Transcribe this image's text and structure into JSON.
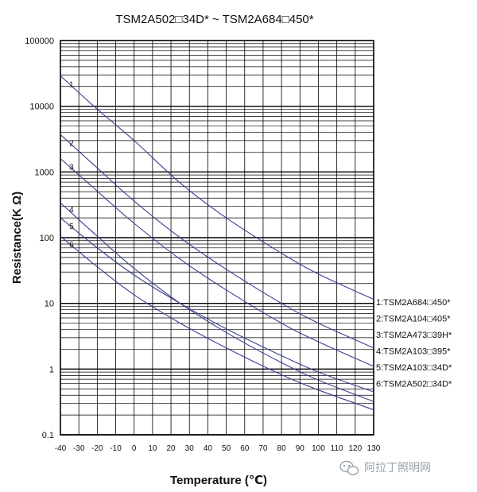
{
  "watermark": {
    "text": "阿拉丁照明网",
    "icon": "wechat-icon"
  },
  "chart_data": {
    "type": "line",
    "title": "TSM2A502□34D* ~ TSM2A684□450*",
    "xlabel": "Temperature (℃)",
    "ylabel": "Resistance(K Ω)",
    "xlim": [
      -40,
      130
    ],
    "ylim": [
      0.1,
      100000
    ],
    "yscale": "log",
    "grid": true,
    "line_color": "#3b3f8f",
    "x_ticks": [
      "-40",
      "-30",
      "-20",
      "-10",
      "0",
      "10",
      "20",
      "30",
      "40",
      "50",
      "60",
      "70",
      "80",
      "90",
      "100",
      "110",
      "120",
      "130"
    ],
    "y_ticks": [
      {
        "value": 0.1,
        "label": "0.1"
      },
      {
        "value": 1,
        "label": "1"
      },
      {
        "value": 10,
        "label": "10"
      },
      {
        "value": 100,
        "label": "100"
      },
      {
        "value": 1000,
        "label": "1000"
      },
      {
        "value": 10000,
        "label": "10000"
      },
      {
        "value": 100000,
        "label": "100000"
      }
    ],
    "series": [
      {
        "label": "1",
        "name": "1:TSM2A684□450*",
        "x": [
          -40,
          -20,
          0,
          25,
          50,
          80,
          100,
          130
        ],
        "y": [
          29000,
          9000,
          3000,
          680,
          200,
          58,
          28,
          11.5
        ]
      },
      {
        "label": "2",
        "name": "2:TSM2A104□405*",
        "x": [
          -40,
          -20,
          0,
          25,
          50,
          80,
          100,
          130
        ],
        "y": [
          3700,
          1150,
          360,
          100,
          33,
          10,
          5,
          2.1
        ]
      },
      {
        "label": "3",
        "name": "3:TSM2A473□39H*",
        "x": [
          -40,
          -20,
          0,
          25,
          50,
          80,
          100,
          130
        ],
        "y": [
          1600,
          510,
          165,
          47,
          16,
          5,
          2.6,
          1.1
        ]
      },
      {
        "label": "4",
        "name": "4:TSM2A103□395*",
        "x": [
          -40,
          -20,
          0,
          25,
          50,
          80,
          100,
          130
        ],
        "y": [
          340,
          105,
          34,
          10,
          3.6,
          1.25,
          0.68,
          0.32
        ]
      },
      {
        "label": "5",
        "name": "5:TSM2A103□34D*",
        "x": [
          -40,
          -20,
          0,
          25,
          50,
          80,
          100,
          130
        ],
        "y": [
          200,
          70,
          27,
          10,
          4.1,
          1.6,
          0.9,
          0.45
        ]
      },
      {
        "label": "6",
        "name": "6:TSM2A502□34D*",
        "x": [
          -40,
          -20,
          0,
          25,
          50,
          80,
          100,
          130
        ],
        "y": [
          105,
          36,
          13.5,
          5,
          2.1,
          0.82,
          0.48,
          0.24
        ]
      }
    ]
  }
}
